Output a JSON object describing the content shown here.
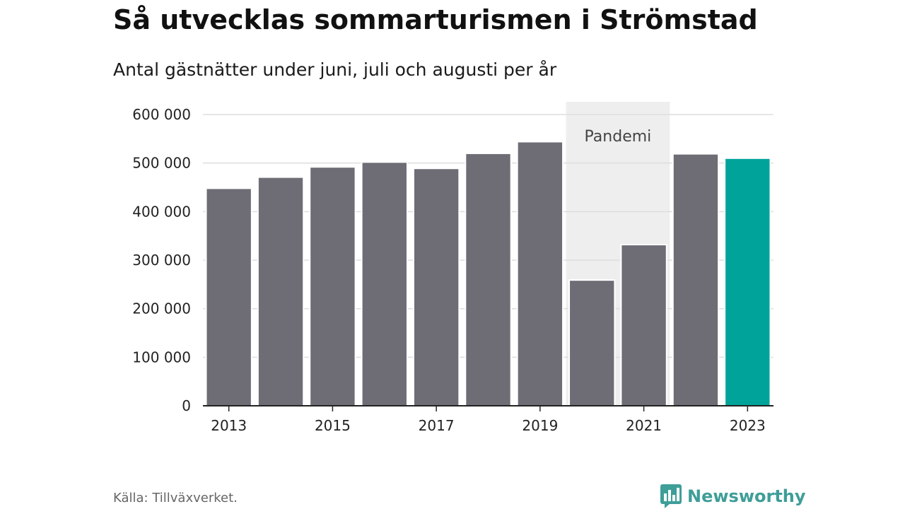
{
  "title": "Så utvecklas sommarturismen i Strömstad",
  "subtitle": "Antal gästnätter under juni, juli och augusti per år",
  "source": "Källa: Tillväxverket.",
  "brand": {
    "name": "Newsworthy",
    "icon": "newsworthy-logo-icon",
    "color": "#3e9e98"
  },
  "chart_data": {
    "type": "bar",
    "categories": [
      "2013",
      "2014",
      "2015",
      "2016",
      "2017",
      "2018",
      "2019",
      "2020",
      "2021",
      "2022",
      "2023"
    ],
    "values": [
      448000,
      471000,
      492000,
      502000,
      489000,
      520000,
      544000,
      259000,
      332000,
      519000,
      510000
    ],
    "highlight_index": 10,
    "colors": {
      "bar": "#6e6d75",
      "highlight": "#00a39a",
      "band": "#eeeeee",
      "grid": "#dddddd",
      "axis": "#222222"
    },
    "ylim": [
      0,
      600000
    ],
    "yticks": [
      0,
      100000,
      200000,
      300000,
      400000,
      500000,
      600000
    ],
    "ytick_labels": [
      "0",
      "100 000",
      "200 000",
      "300 000",
      "400 000",
      "500 000",
      "600 000"
    ],
    "xtick_labels": [
      "2013",
      "2015",
      "2017",
      "2019",
      "2021",
      "2023"
    ],
    "xlabel": "",
    "ylabel": "",
    "grid": true,
    "legend": "none",
    "annotations": [
      {
        "label": "Pandemi",
        "from": "2020",
        "to": "2021"
      }
    ]
  }
}
